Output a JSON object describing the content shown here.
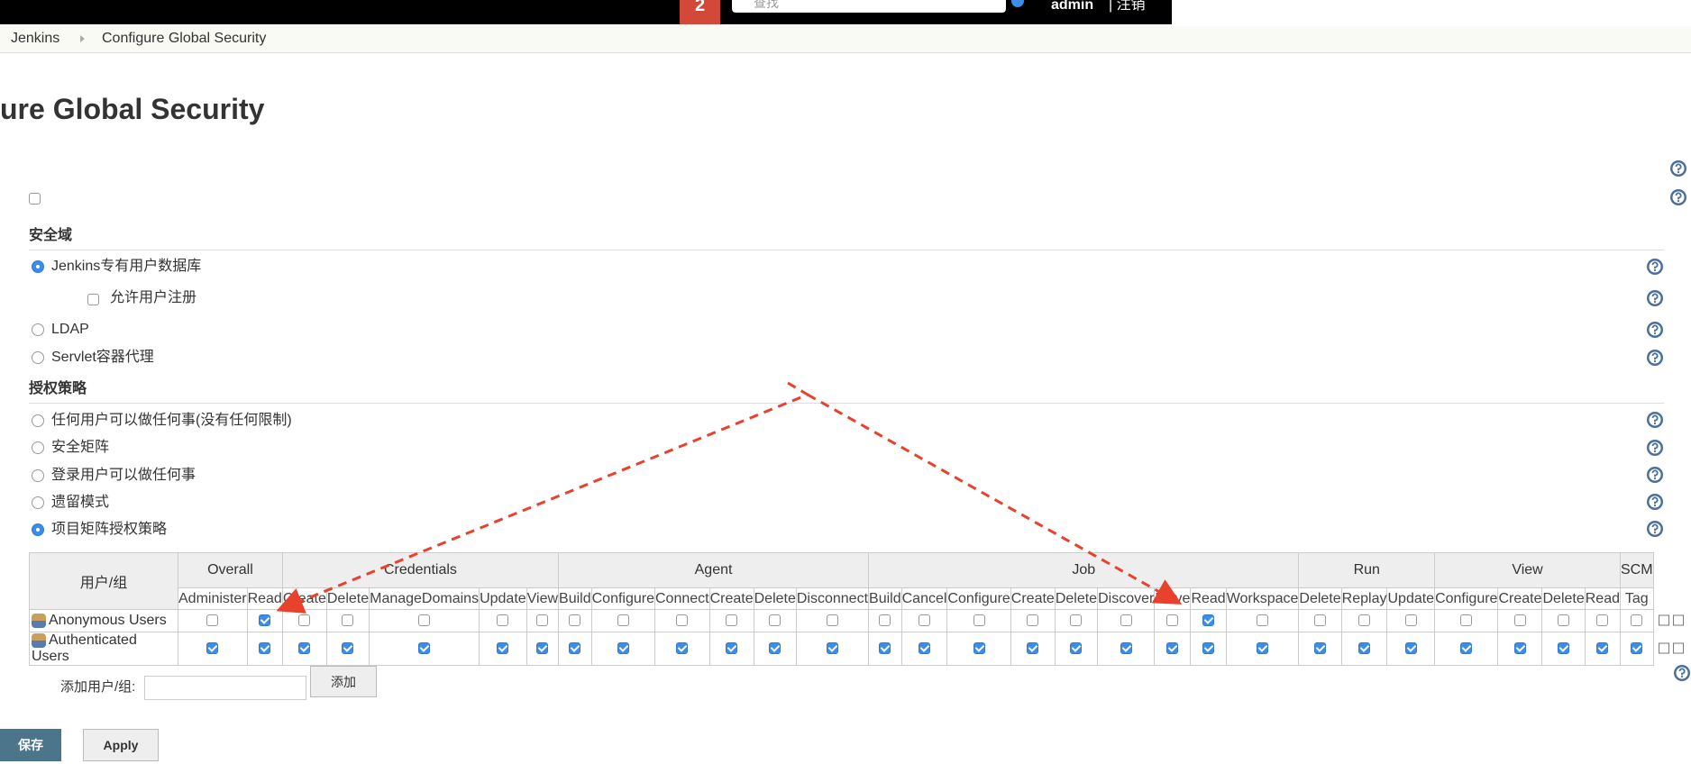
{
  "header": {
    "badge": "2",
    "search_placeholder": "查找",
    "user": "admin",
    "logout": "| 注销"
  },
  "breadcrumb": [
    "Jenkins",
    "Configure Global Security"
  ],
  "title": "ure Global Security",
  "security_realm": {
    "heading": "安全域",
    "options": [
      {
        "label": "Jenkins专有用户数据库",
        "selected": true
      },
      {
        "label": "LDAP",
        "selected": false
      },
      {
        "label": "Servlet容器代理",
        "selected": false
      }
    ],
    "allow_signup": {
      "label": "允许用户注册",
      "checked": false
    }
  },
  "authorization": {
    "heading": "授权策略",
    "options": [
      {
        "label": "任何用户可以做任何事(没有任何限制)",
        "selected": false
      },
      {
        "label": "安全矩阵",
        "selected": false
      },
      {
        "label": "登录用户可以做任何事",
        "selected": false
      },
      {
        "label": "遗留模式",
        "selected": false
      },
      {
        "label": "项目矩阵授权策略",
        "selected": true
      }
    ]
  },
  "matrix": {
    "user_header": "用户/组",
    "groups": [
      {
        "name": "Overall",
        "permissions": [
          "Administer",
          "Read"
        ]
      },
      {
        "name": "Credentials",
        "permissions": [
          "Create",
          "Delete",
          "ManageDomains",
          "Update",
          "View"
        ]
      },
      {
        "name": "Agent",
        "permissions": [
          "Build",
          "Configure",
          "Connect",
          "Create",
          "Delete",
          "Disconnect"
        ]
      },
      {
        "name": "Job",
        "permissions": [
          "Build",
          "Cancel",
          "Configure",
          "Create",
          "Delete",
          "Discover",
          "Move",
          "Read",
          "Workspace"
        ]
      },
      {
        "name": "Run",
        "permissions": [
          "Delete",
          "Replay",
          "Update"
        ]
      },
      {
        "name": "View",
        "permissions": [
          "Configure",
          "Create",
          "Delete",
          "Read"
        ]
      },
      {
        "name": "SCM",
        "permissions": [
          "Tag"
        ]
      }
    ],
    "rows": [
      {
        "name": "Anonymous Users",
        "checks": [
          false,
          true,
          false,
          false,
          false,
          false,
          false,
          false,
          false,
          false,
          false,
          false,
          false,
          false,
          false,
          false,
          false,
          false,
          false,
          false,
          true,
          false,
          false,
          false,
          false,
          false,
          false,
          false,
          false,
          false
        ]
      },
      {
        "name": "Authenticated Users",
        "checks": [
          true,
          true,
          true,
          true,
          true,
          true,
          true,
          true,
          true,
          true,
          true,
          true,
          true,
          true,
          true,
          true,
          true,
          true,
          true,
          true,
          true,
          true,
          true,
          true,
          true,
          true,
          true,
          true,
          true,
          true
        ]
      }
    ]
  },
  "add_user": {
    "label": "添加用户/组:",
    "button": "添加"
  },
  "buttons": {
    "save": "保存",
    "apply": "Apply"
  }
}
